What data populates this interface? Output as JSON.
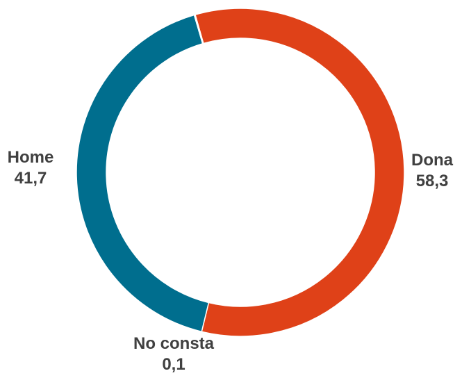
{
  "chart_data": {
    "type": "pie",
    "variant": "donut",
    "categories": [
      "Dona",
      "Home",
      "No consta"
    ],
    "values": [
      58.3,
      41.7,
      0.1
    ],
    "value_labels": [
      "58,3",
      "41,7",
      "0,1"
    ],
    "colors": [
      "#DF4118",
      "#006E8E",
      "#A9C8D4"
    ],
    "title": "",
    "legend": "none"
  }
}
